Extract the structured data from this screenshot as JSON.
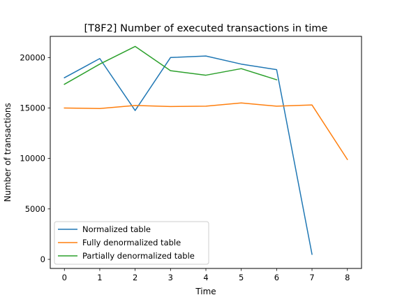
{
  "chart_data": {
    "type": "line",
    "title": "[T8F2] Number of executed transactions in time",
    "xlabel": "Time",
    "ylabel": "Number of transactions",
    "xlim": [
      -0.4,
      8.4
    ],
    "ylim": [
      -900,
      22100
    ],
    "xticks": [
      0,
      1,
      2,
      3,
      4,
      5,
      6,
      7,
      8
    ],
    "yticks": [
      0,
      5000,
      10000,
      15000,
      20000
    ],
    "grid": false,
    "legend_position": "lower-left",
    "series": [
      {
        "name": "Normalized table",
        "color": "#1f77b4",
        "x": [
          0,
          1,
          2,
          3,
          4,
          5,
          6,
          7
        ],
        "values": [
          18000,
          19900,
          14750,
          20000,
          20150,
          19350,
          18800,
          500
        ]
      },
      {
        "name": "Fully denormalized table",
        "color": "#ff7f0e",
        "x": [
          0,
          1,
          2,
          3,
          4,
          5,
          6,
          7,
          8
        ],
        "values": [
          15000,
          14950,
          15250,
          15150,
          15180,
          15500,
          15180,
          15300,
          9900
        ]
      },
      {
        "name": "Partially denormalized table",
        "color": "#2ca02c",
        "x": [
          0,
          1,
          2,
          3,
          4,
          5,
          6
        ],
        "values": [
          17350,
          19350,
          21100,
          18700,
          18250,
          18900,
          17800
        ]
      }
    ]
  }
}
